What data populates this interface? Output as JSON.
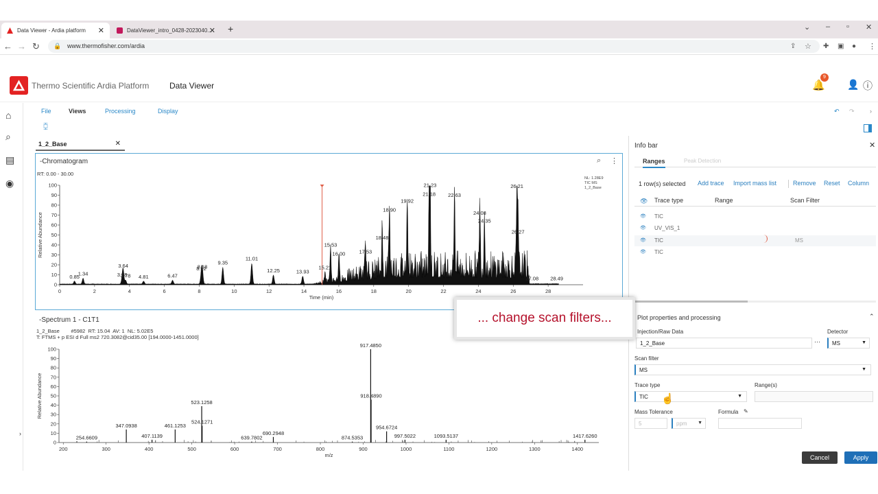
{
  "browser": {
    "tabs": [
      {
        "title": "Data Viewer - Ardia platform"
      },
      {
        "title": "DataViewer_intro_0428-2023040..."
      }
    ],
    "url": "www.thermofisher.com/ardia"
  },
  "app": {
    "brand": "Thermo Scientific Ardia Platform",
    "product": "Data Viewer",
    "notification_count": "9"
  },
  "menu": {
    "file": "File",
    "views": "Views",
    "processing": "Processing",
    "display": "Display"
  },
  "file_tab": {
    "label": "1_2_Base"
  },
  "chromatogram": {
    "title": "-Chromatogram",
    "rt_range": "RT: 0.00 - 30.00",
    "nl_info": [
      "NL: 1.28E9",
      "TIC MS",
      "1_2_Base"
    ],
    "ylabel": "Relative Abundance",
    "xlabel": "Time (min)"
  },
  "spectrum": {
    "title": "-Spectrum 1 - C1T1",
    "info_line1": "1_2_Base        #5982  RT: 15.04  AV: 1  NL: 5.02E5",
    "info_line2": "T: FTMS + p ESI d Full ms2 720.3082@cid35.00 [194.0000-1451.0000]",
    "ylabel": "Relative Abundance",
    "xlabel": "m/z"
  },
  "chart_data": [
    {
      "type": "line",
      "title": "",
      "xlabel": "Time (min)",
      "ylabel": "Relative Abundance",
      "xlim": [
        0,
        30
      ],
      "ylim": [
        0,
        100
      ],
      "xticks": [
        0,
        2,
        4,
        6,
        8,
        10,
        12,
        14,
        16,
        18,
        20,
        22,
        24,
        26,
        28
      ],
      "yticks": [
        0,
        10,
        20,
        30,
        40,
        50,
        60,
        70,
        80,
        90,
        100
      ],
      "marker_rt": 15.04,
      "peaks": [
        {
          "x": 0.85,
          "y": 3
        },
        {
          "x": 1.34,
          "y": 6
        },
        {
          "x": 3.58,
          "y": 5
        },
        {
          "x": 3.64,
          "y": 14
        },
        {
          "x": 3.78,
          "y": 4
        },
        {
          "x": 4.81,
          "y": 3
        },
        {
          "x": 6.47,
          "y": 4
        },
        {
          "x": 8.12,
          "y": 11
        },
        {
          "x": 8.18,
          "y": 13
        },
        {
          "x": 9.35,
          "y": 17
        },
        {
          "x": 11.01,
          "y": 21
        },
        {
          "x": 12.25,
          "y": 9
        },
        {
          "x": 13.93,
          "y": 8
        },
        {
          "x": 15.21,
          "y": 12
        },
        {
          "x": 15.53,
          "y": 35
        },
        {
          "x": 16.0,
          "y": 26
        },
        {
          "x": 17.53,
          "y": 28
        },
        {
          "x": 18.48,
          "y": 42
        },
        {
          "x": 18.9,
          "y": 70
        },
        {
          "x": 19.92,
          "y": 79
        },
        {
          "x": 21.18,
          "y": 86
        },
        {
          "x": 21.23,
          "y": 95
        },
        {
          "x": 22.63,
          "y": 85
        },
        {
          "x": 24.08,
          "y": 67
        },
        {
          "x": 24.35,
          "y": 59
        },
        {
          "x": 26.21,
          "y": 94
        },
        {
          "x": 26.27,
          "y": 48
        },
        {
          "x": 27.08,
          "y": 1
        },
        {
          "x": 28.49,
          "y": 1
        }
      ]
    },
    {
      "type": "bar",
      "title": "",
      "xlabel": "m/z",
      "ylabel": "Relative Abundance",
      "xlim": [
        190,
        1450
      ],
      "ylim": [
        0,
        100
      ],
      "xticks": [
        200,
        300,
        400,
        500,
        600,
        700,
        800,
        900,
        1000,
        1100,
        1200,
        1300,
        1400
      ],
      "yticks": [
        0,
        10,
        20,
        30,
        40,
        50,
        60,
        70,
        80,
        90,
        100
      ],
      "peaks": [
        {
          "x": 254.6609,
          "y": 1
        },
        {
          "x": 347.0938,
          "y": 14
        },
        {
          "x": 407.1139,
          "y": 3
        },
        {
          "x": 461.1253,
          "y": 14
        },
        {
          "x": 523.1258,
          "y": 39
        },
        {
          "x": 524.1271,
          "y": 18
        },
        {
          "x": 639.7802,
          "y": 1
        },
        {
          "x": 690.2948,
          "y": 6
        },
        {
          "x": 874.5353,
          "y": 1
        },
        {
          "x": 917.485,
          "y": 100
        },
        {
          "x": 918.489,
          "y": 46
        },
        {
          "x": 954.6724,
          "y": 12
        },
        {
          "x": 997.5022,
          "y": 3
        },
        {
          "x": 1093.5137,
          "y": 3
        },
        {
          "x": 1417.626,
          "y": 3
        }
      ]
    }
  ],
  "infobar": {
    "title": "Info bar",
    "tabs": [
      "Ranges",
      "Peak Detection"
    ],
    "selection_text": "1 row(s) selected",
    "actions": [
      "Add trace",
      "Import mass list",
      "Remove",
      "Reset",
      "Column"
    ],
    "columns": [
      "Trace type",
      "Range",
      "Scan Filter"
    ],
    "rows": [
      {
        "trace": "TIC",
        "range": "",
        "filter": ""
      },
      {
        "trace": "UV_VIS_1",
        "range": "",
        "filter": ""
      },
      {
        "trace": "TIC",
        "range": "",
        "filter": "MS"
      },
      {
        "trace": "TIC",
        "range": "",
        "filter": ""
      }
    ],
    "plot_section": "Plot properties and processing",
    "injection_label": "Injection/Raw Data",
    "injection_value": "1_2_Base",
    "detector_label": "Detector",
    "detector_value": "MS",
    "scan_filter_label": "Scan filter",
    "scan_filter_value": "MS",
    "trace_type_label": "Trace type",
    "trace_type_value": "TIC",
    "ranges_label": "Range(s)",
    "mass_tol_label": "Mass Tolerance",
    "mass_tol_value": "5",
    "mass_tol_unit": "ppm",
    "formula_label": "Formula",
    "cancel": "Cancel",
    "apply": "Apply"
  },
  "tooltip": "... change scan filters...",
  "colors": {
    "accent": "#2a88c8",
    "brand_red": "#e32222",
    "apply": "#1f6fb7",
    "cancel": "#3b3b3b",
    "marker": "#e0604a"
  }
}
